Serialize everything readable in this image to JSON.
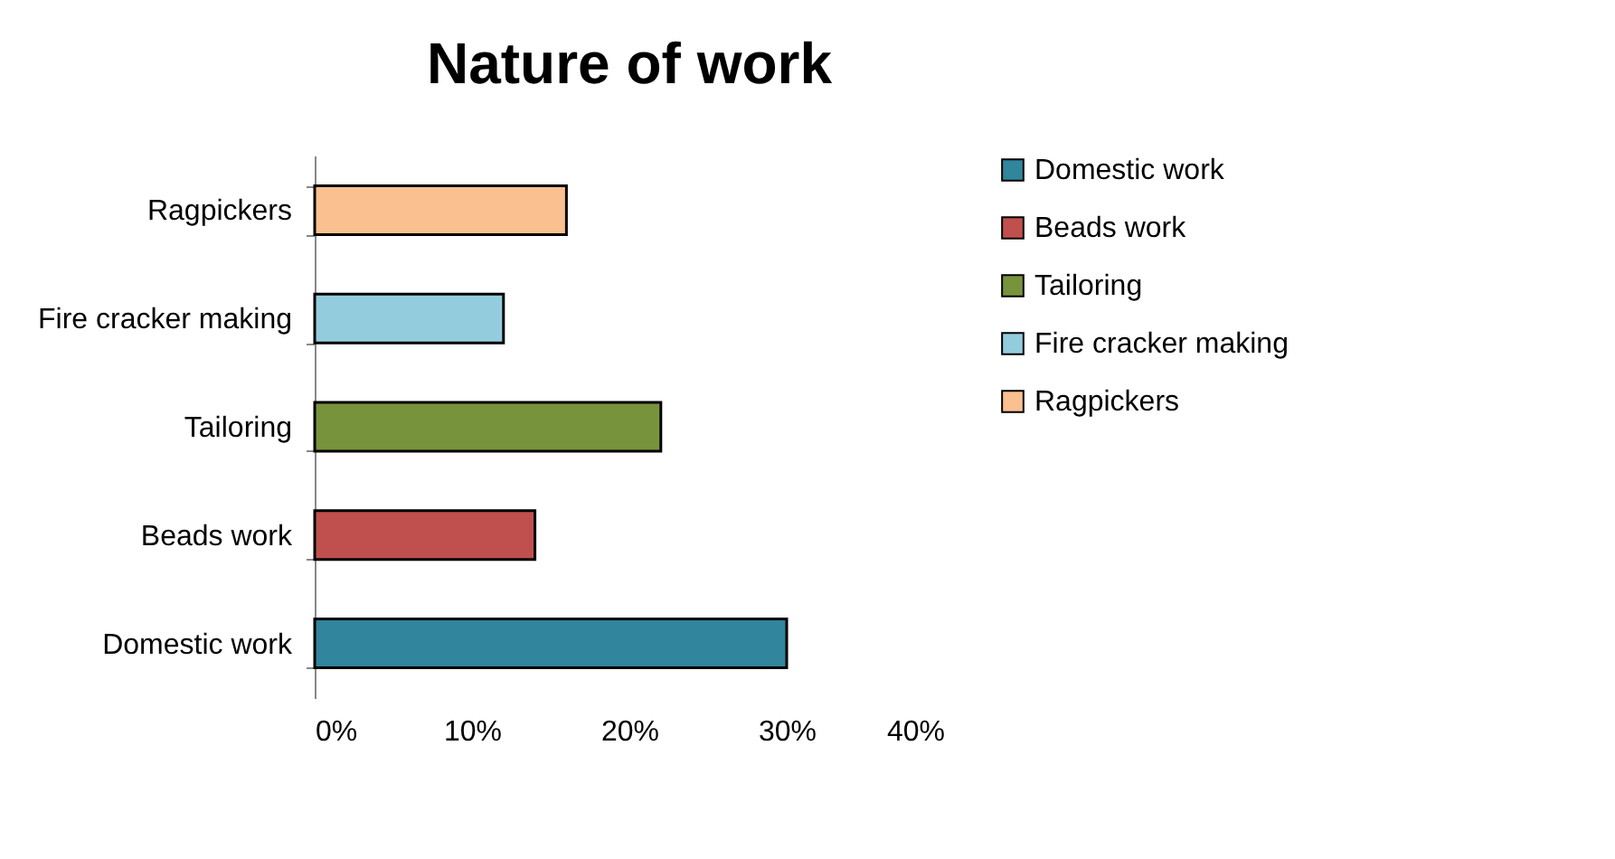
{
  "chart_data": {
    "type": "bar",
    "orientation": "horizontal",
    "title": "Nature of work",
    "categories": [
      "Ragpickers",
      "Fire cracker making",
      "Tailoring",
      "Beads work",
      "Domestic work"
    ],
    "series": [
      {
        "name": "Domestic work",
        "color": "#31859c",
        "values": [
          null,
          null,
          null,
          null,
          30
        ]
      },
      {
        "name": "Beads work",
        "color": "#c0504d",
        "values": [
          null,
          null,
          null,
          14,
          null
        ]
      },
      {
        "name": "Tailoring",
        "color": "#77933c",
        "values": [
          null,
          null,
          22,
          null,
          null
        ]
      },
      {
        "name": "Fire cracker making",
        "color": "#93cddd",
        "values": [
          null,
          12,
          null,
          null,
          null
        ]
      },
      {
        "name": "Ragpickers",
        "color": "#fac090",
        "values": [
          16,
          null,
          null,
          null,
          null
        ]
      }
    ],
    "xlim": [
      0,
      40
    ],
    "xticks": [
      {
        "value": 0,
        "label": "0%"
      },
      {
        "value": 10,
        "label": "10%"
      },
      {
        "value": 20,
        "label": "20%"
      },
      {
        "value": 30,
        "label": "30%"
      },
      {
        "value": 40,
        "label": "40%"
      }
    ],
    "grid": false,
    "legend": "right"
  }
}
